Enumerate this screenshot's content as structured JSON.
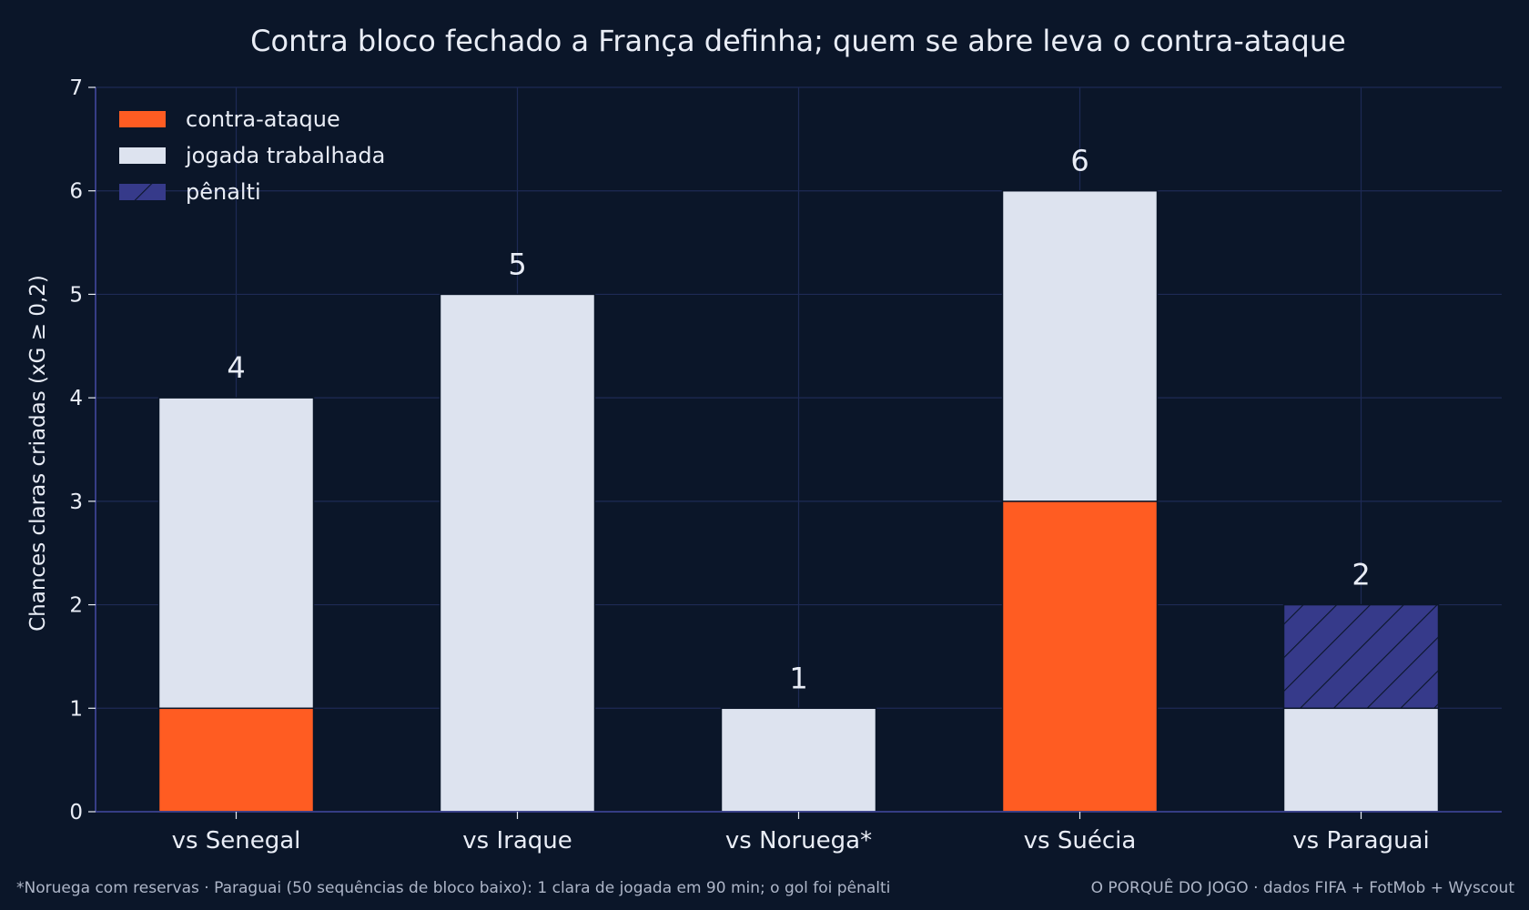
{
  "chart_data": {
    "type": "bar",
    "stacked": true,
    "title": "Contra bloco fechado a França definha; quem se abre leva o contra-ataque",
    "ylabel": "Chances claras criadas (xG ≥ 0,2)",
    "xlabel": "",
    "ylim": [
      0,
      7
    ],
    "yticks": [
      0,
      1,
      2,
      3,
      4,
      5,
      6,
      7
    ],
    "grid": true,
    "legend_position": "top-left",
    "categories": [
      "vs Senegal",
      "vs Iraque",
      "vs Noruega*",
      "vs Suécia",
      "vs Paraguai"
    ],
    "series": [
      {
        "name": "contra-ataque",
        "color": "#ff5c22",
        "pattern": "solid",
        "values": [
          1,
          0,
          0,
          3,
          0
        ]
      },
      {
        "name": "jogada trabalhada",
        "color": "#dde3ef",
        "pattern": "solid",
        "values": [
          3,
          5,
          1,
          3,
          1
        ]
      },
      {
        "name": "pênalti",
        "color": "#363a8a",
        "pattern": "hatch",
        "values": [
          0,
          0,
          0,
          0,
          1
        ]
      }
    ],
    "totals": [
      "4",
      "5",
      "1",
      "6",
      "2"
    ]
  },
  "footnote": "*Noruega com reservas · Paraguai (50 sequências de bloco baixo): 1 clara de jogada em 90 min; o gol foi pênalti",
  "credit": "O PORQUÊ DO JOGO · dados FIFA + FotMob + Wyscout",
  "colors": {
    "background": "#0b1629",
    "grid": "#1e2a55",
    "axis": "#3b4290",
    "text": "#e9edf6",
    "muted": "#aeb6c8"
  }
}
